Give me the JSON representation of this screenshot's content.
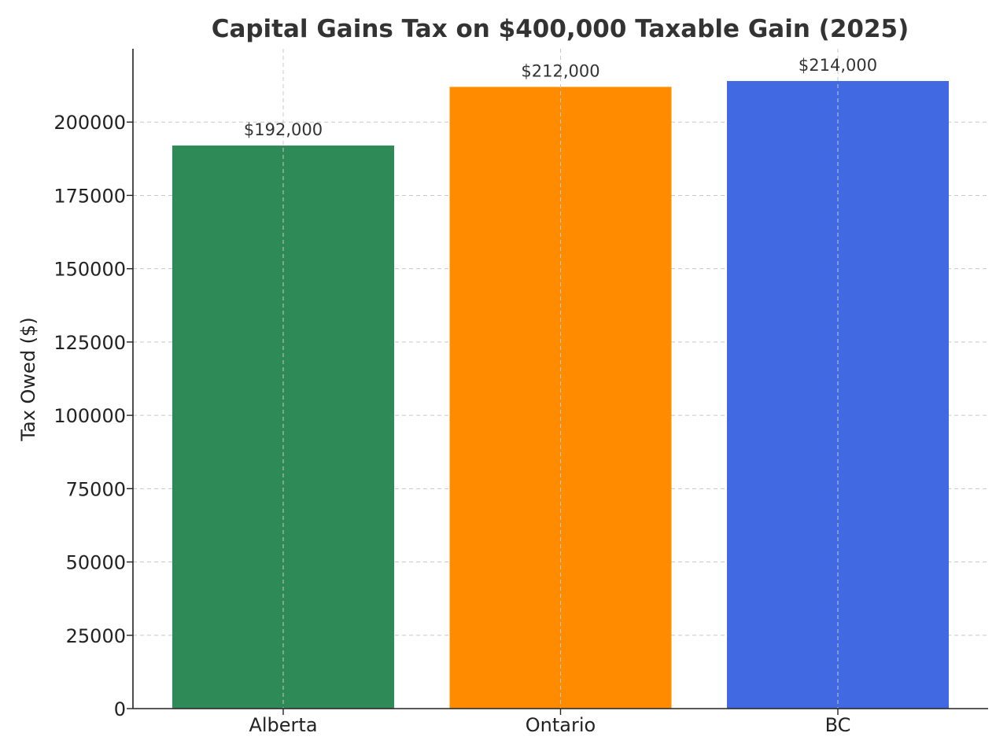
{
  "chart_data": {
    "type": "bar",
    "title": "Capital Gains Tax on $400,000 Taxable Gain (2025)",
    "xlabel": "",
    "ylabel": "Tax Owed ($)",
    "categories": [
      "Alberta",
      "Ontario",
      "BC"
    ],
    "values": [
      192000,
      212000,
      214000
    ],
    "data_labels": [
      "$192,000",
      "$212,000",
      "$214,000"
    ],
    "colors": [
      "#2e8b57",
      "#ff8c00",
      "#4169e1"
    ],
    "ylim": [
      0,
      225000
    ],
    "yticks": [
      0,
      25000,
      50000,
      75000,
      100000,
      125000,
      150000,
      175000,
      200000
    ],
    "ytick_labels": [
      "0",
      "25000",
      "50000",
      "75000",
      "100000",
      "125000",
      "150000",
      "175000",
      "200000"
    ],
    "grid": true,
    "legend": false
  }
}
